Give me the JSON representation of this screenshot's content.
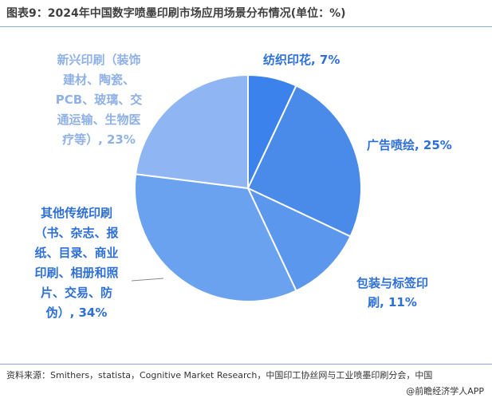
{
  "title": "图表9：2024年中国数字喷墨印刷市场应用场景分布情况(单位：%)",
  "source": "资料来源：Smithers，statista，Cognitive Market Research，中国印工协丝网与工业喷墨印刷分会，中国",
  "credit": "@前瞻经济学人APP",
  "colors": {
    "accent_text": "#2e6fd8",
    "muted_text": "#8fb1e6",
    "rule": "#8aa9d9"
  },
  "chart_data": {
    "type": "pie",
    "unit": "%",
    "start_angle_deg": 0,
    "direction": "clockwise",
    "slices": [
      {
        "label_lines": [
          "纺织印花, 7%"
        ],
        "value": 7,
        "color": "#3b82ec"
      },
      {
        "label_lines": [
          "广告喷绘, 25%"
        ],
        "value": 25,
        "color": "#4a8ae9"
      },
      {
        "label_lines": [
          "包装与标签印",
          "刷, 11%"
        ],
        "value": 11,
        "color": "#5c97ee"
      },
      {
        "label_lines": [
          "其他传统印刷",
          "（书、杂志、报",
          "纸、目录、商业",
          "印刷、相册和照",
          "片、交易、防",
          "伪）, 34%"
        ],
        "value": 34,
        "color": "#6aa2f0"
      },
      {
        "label_lines": [
          "新兴印刷（装饰",
          "建材、陶瓷、",
          "PCB、玻璃、交",
          "通运输、生物医",
          "疗等）, 23%"
        ],
        "value": 23,
        "color": "#8fb5f3"
      }
    ]
  }
}
